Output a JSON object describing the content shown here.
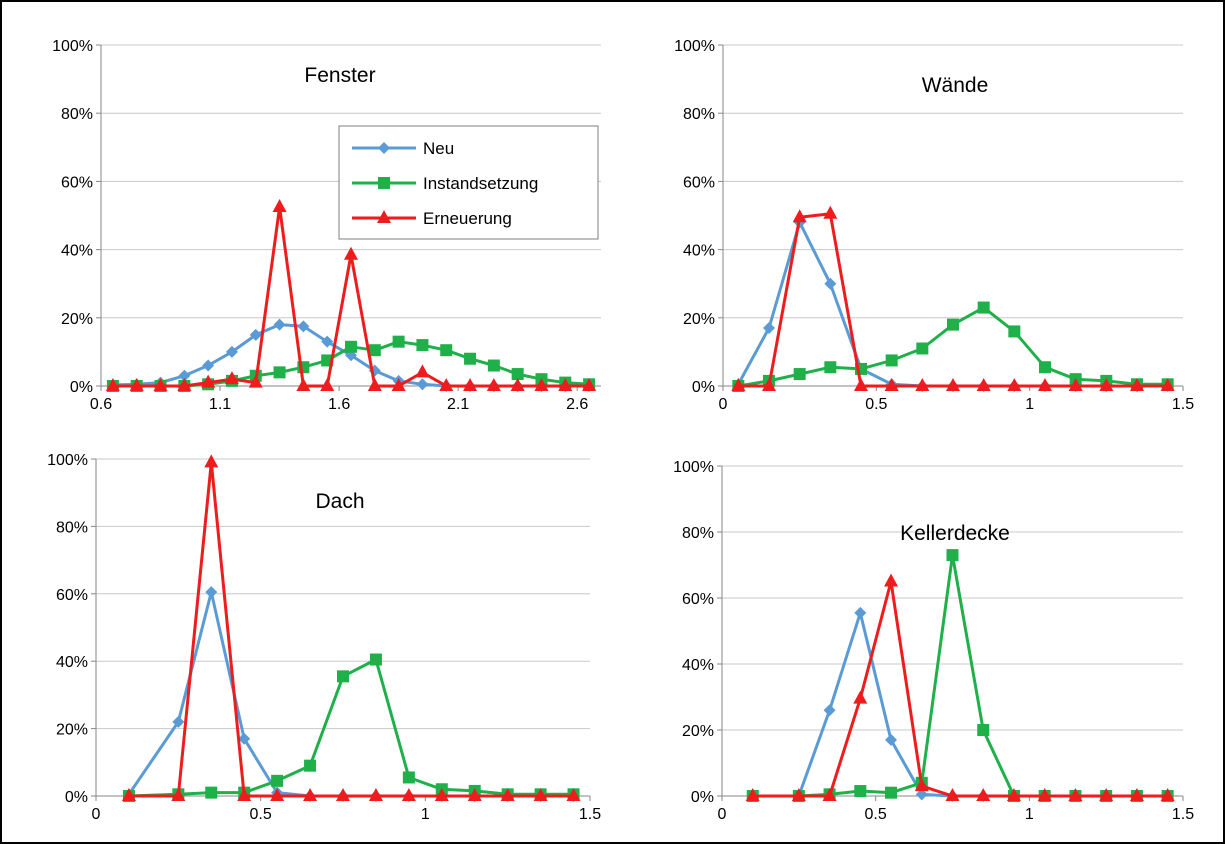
{
  "colors": {
    "Neu": "#5b9bd5",
    "Instandsetzung": "#1fb04a",
    "Erneuerung": "#ee1c1c",
    "grid": "#c8c8c8",
    "axis": "#878787"
  },
  "legend": {
    "position": "top-right of first panel",
    "items": [
      "Neu",
      "Instandsetzung",
      "Erneuerung"
    ]
  },
  "chart_data": [
    {
      "type": "line",
      "title": "Fenster",
      "xlabel": "",
      "ylabel": "",
      "xlim": [
        0.6,
        2.7
      ],
      "ylim": [
        0,
        100
      ],
      "xticks": [
        0.6,
        1.1,
        1.6,
        2.1,
        2.6
      ],
      "xtick_labels": [
        "0.6",
        "1.1",
        "1.6",
        "2.1",
        "2.6"
      ],
      "yticks": [
        0,
        20,
        40,
        60,
        80,
        100
      ],
      "ytick_labels": [
        "0%",
        "20%",
        "40%",
        "60%",
        "80%",
        "100%"
      ],
      "grid": true,
      "series": [
        {
          "name": "Neu",
          "marker": "diamond",
          "x": [
            0.65,
            0.75,
            0.85,
            0.95,
            1.05,
            1.15,
            1.25,
            1.35,
            1.45,
            1.55,
            1.65,
            1.75,
            1.85,
            1.95,
            2.05,
            2.15,
            2.25,
            2.35,
            2.45,
            2.55,
            2.65
          ],
          "y": [
            0.3,
            0.5,
            1,
            3,
            6,
            10,
            15,
            18,
            17.5,
            13,
            9,
            4.5,
            1.5,
            0.5,
            0,
            0,
            0,
            0,
            0,
            0,
            0
          ]
        },
        {
          "name": "Instandsetzung",
          "marker": "square",
          "x": [
            0.65,
            0.75,
            0.85,
            0.95,
            1.05,
            1.15,
            1.25,
            1.35,
            1.45,
            1.55,
            1.65,
            1.75,
            1.85,
            1.95,
            2.05,
            2.15,
            2.25,
            2.35,
            2.45,
            2.55,
            2.65
          ],
          "y": [
            0,
            0,
            0,
            0,
            0.5,
            1.5,
            3,
            4,
            5.5,
            7.5,
            11.5,
            10.5,
            13,
            12,
            10.5,
            8,
            6,
            3.5,
            2,
            1,
            0.5
          ]
        },
        {
          "name": "Erneuerung",
          "marker": "triangle",
          "x": [
            0.65,
            0.75,
            0.85,
            0.95,
            1.05,
            1.15,
            1.25,
            1.35,
            1.45,
            1.55,
            1.65,
            1.75,
            1.85,
            1.95,
            2.05,
            2.15,
            2.25,
            2.35,
            2.45,
            2.55,
            2.65
          ],
          "y": [
            0,
            0,
            0,
            0,
            1,
            2,
            1,
            52.5,
            0,
            0,
            38.5,
            0,
            0,
            4,
            0,
            0,
            0,
            0,
            0,
            0,
            0
          ]
        }
      ]
    },
    {
      "type": "line",
      "title": "Wände",
      "xlabel": "",
      "ylabel": "",
      "xlim": [
        0,
        1.5
      ],
      "ylim": [
        0,
        100
      ],
      "xticks": [
        0,
        0.5,
        1,
        1.5
      ],
      "xtick_labels": [
        "0",
        "0.5",
        "1",
        "1.5"
      ],
      "yticks": [
        0,
        20,
        40,
        60,
        80,
        100
      ],
      "ytick_labels": [
        "0%",
        "20%",
        "40%",
        "60%",
        "80%",
        "100%"
      ],
      "grid": true,
      "series": [
        {
          "name": "Neu",
          "marker": "diamond",
          "x": [
            0.05,
            0.15,
            0.25,
            0.35,
            0.45,
            0.55,
            0.65,
            0.75,
            0.85,
            0.95,
            1.05,
            1.15,
            1.25,
            1.35,
            1.45
          ],
          "y": [
            0.5,
            17,
            48,
            30,
            5,
            0.5,
            0,
            0,
            0,
            0,
            0,
            0,
            0,
            0,
            0
          ]
        },
        {
          "name": "Instandsetzung",
          "marker": "square",
          "x": [
            0.05,
            0.15,
            0.25,
            0.35,
            0.45,
            0.55,
            0.65,
            0.75,
            0.85,
            0.95,
            1.05,
            1.15,
            1.25,
            1.35,
            1.45
          ],
          "y": [
            0,
            1.5,
            3.5,
            5.5,
            5,
            7.5,
            11,
            18,
            23,
            16,
            5.5,
            2,
            1.5,
            0.5,
            0.5
          ]
        },
        {
          "name": "Erneuerung",
          "marker": "triangle",
          "x": [
            0.05,
            0.15,
            0.25,
            0.35,
            0.45,
            0.55,
            0.65,
            0.75,
            0.85,
            0.95,
            1.05,
            1.15,
            1.25,
            1.35,
            1.45
          ],
          "y": [
            0,
            0,
            49.5,
            50.5,
            0,
            0,
            0,
            0,
            0,
            0,
            0,
            0,
            0,
            0,
            0
          ]
        }
      ]
    },
    {
      "type": "line",
      "title": "Dach",
      "xlabel": "",
      "ylabel": "",
      "xlim": [
        0,
        1.5
      ],
      "ylim": [
        0,
        100
      ],
      "xticks": [
        0,
        0.5,
        1,
        1.5
      ],
      "xtick_labels": [
        "0",
        "0.5",
        "1",
        "1.5"
      ],
      "yticks": [
        0,
        20,
        40,
        60,
        80,
        100
      ],
      "ytick_labels": [
        "0%",
        "20%",
        "40%",
        "60%",
        "80%",
        "100%"
      ],
      "grid": true,
      "series": [
        {
          "name": "Neu",
          "marker": "diamond",
          "x": [
            0.1,
            0.25,
            0.35,
            0.45,
            0.55,
            0.65,
            0.75,
            0.85,
            0.95,
            1.05,
            1.15,
            1.25,
            1.35,
            1.45
          ],
          "y": [
            0.5,
            22,
            60.5,
            17,
            1,
            0,
            0,
            0,
            0,
            0,
            0,
            0,
            0,
            0
          ]
        },
        {
          "name": "Instandsetzung",
          "marker": "square",
          "x": [
            0.1,
            0.25,
            0.35,
            0.45,
            0.55,
            0.65,
            0.75,
            0.85,
            0.95,
            1.05,
            1.15,
            1.25,
            1.35,
            1.45
          ],
          "y": [
            0,
            0.5,
            1,
            1,
            4.5,
            9,
            35.5,
            40.5,
            5.5,
            2,
            1.5,
            0.5,
            0.5,
            0.5
          ]
        },
        {
          "name": "Erneuerung",
          "marker": "triangle",
          "x": [
            0.1,
            0.25,
            0.35,
            0.45,
            0.55,
            0.65,
            0.75,
            0.85,
            0.95,
            1.05,
            1.15,
            1.25,
            1.35,
            1.45
          ],
          "y": [
            0,
            0,
            99,
            0,
            0,
            0,
            0,
            0,
            0,
            0,
            0,
            0,
            0,
            0
          ]
        }
      ]
    },
    {
      "type": "line",
      "title": "Kellerdecke",
      "xlabel": "",
      "ylabel": "",
      "xlim": [
        0,
        1.5
      ],
      "ylim": [
        0,
        100
      ],
      "xticks": [
        0,
        0.5,
        1,
        1.5
      ],
      "xtick_labels": [
        "0",
        "0.5",
        "1",
        "1.5"
      ],
      "yticks": [
        0,
        20,
        40,
        60,
        80,
        100
      ],
      "ytick_labels": [
        "0%",
        "20%",
        "40%",
        "60%",
        "80%",
        "100%"
      ],
      "grid": true,
      "series": [
        {
          "name": "Neu",
          "marker": "diamond",
          "x": [
            0.1,
            0.25,
            0.35,
            0.45,
            0.55,
            0.65,
            0.75,
            0.85,
            0.95,
            1.05,
            1.15,
            1.25,
            1.35,
            1.45
          ],
          "y": [
            0,
            0,
            26,
            55.5,
            17,
            0.5,
            0,
            0,
            0,
            0,
            0,
            0,
            0,
            0
          ]
        },
        {
          "name": "Instandsetzung",
          "marker": "square",
          "x": [
            0.1,
            0.25,
            0.35,
            0.45,
            0.55,
            0.65,
            0.75,
            0.85,
            0.95,
            1.05,
            1.15,
            1.25,
            1.35,
            1.45
          ],
          "y": [
            0,
            0,
            0.5,
            1.5,
            1,
            4,
            73,
            20,
            0,
            0,
            0,
            0,
            0,
            0
          ]
        },
        {
          "name": "Erneuerung",
          "marker": "triangle",
          "x": [
            0.1,
            0.25,
            0.35,
            0.45,
            0.55,
            0.65,
            0.75,
            0.85,
            0.95,
            1.05,
            1.15,
            1.25,
            1.35,
            1.45
          ],
          "y": [
            0,
            0,
            0,
            29.5,
            65,
            3,
            0,
            0,
            0,
            0,
            0,
            0,
            0,
            0
          ]
        }
      ]
    }
  ]
}
